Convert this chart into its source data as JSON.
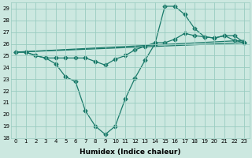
{
  "xlabel": "Humidex (Indice chaleur)",
  "xlim": [
    -0.5,
    23.5
  ],
  "ylim": [
    18,
    29.5
  ],
  "yticks": [
    18,
    19,
    20,
    21,
    22,
    23,
    24,
    25,
    26,
    27,
    28,
    29
  ],
  "xticks": [
    0,
    1,
    2,
    3,
    4,
    5,
    6,
    7,
    8,
    9,
    10,
    11,
    12,
    13,
    14,
    15,
    16,
    17,
    18,
    19,
    20,
    21,
    22,
    23
  ],
  "bg_color": "#cce8e0",
  "grid_color": "#99ccc0",
  "line_color": "#1a7a6a",
  "lines": [
    {
      "x": [
        0,
        1,
        2,
        3,
        4,
        5,
        6,
        7,
        8,
        9,
        10,
        11,
        12,
        13,
        14,
        15,
        16,
        17,
        18,
        19,
        20,
        21,
        22,
        23
      ],
      "y": [
        25.3,
        25.3,
        25.0,
        24.8,
        24.3,
        23.2,
        22.8,
        20.3,
        19.0,
        18.3,
        19.0,
        21.3,
        23.1,
        24.6,
        26.0,
        29.2,
        29.2,
        28.5,
        27.3,
        26.6,
        26.5,
        26.7,
        26.7,
        26.1
      ],
      "marker": "D",
      "markersize": 2.5,
      "linewidth": 0.9
    },
    {
      "x": [
        0,
        1,
        2,
        3,
        4,
        5,
        6,
        7,
        8,
        9,
        10,
        11,
        12,
        13,
        14,
        15,
        16,
        17,
        18,
        19,
        20,
        21,
        22,
        23
      ],
      "y": [
        25.3,
        25.3,
        25.0,
        24.8,
        24.8,
        24.8,
        24.8,
        24.8,
        24.5,
        24.2,
        24.7,
        25.0,
        25.5,
        25.8,
        26.1,
        26.1,
        26.4,
        26.9,
        26.7,
        26.6,
        26.5,
        26.7,
        26.3,
        26.1
      ],
      "marker": "D",
      "markersize": 2.5,
      "linewidth": 0.9
    },
    {
      "x": [
        0,
        23
      ],
      "y": [
        25.3,
        26.1
      ],
      "marker": null,
      "markersize": 0,
      "linewidth": 0.9
    },
    {
      "x": [
        0,
        23
      ],
      "y": [
        25.3,
        26.3
      ],
      "marker": null,
      "markersize": 0,
      "linewidth": 0.9
    }
  ]
}
